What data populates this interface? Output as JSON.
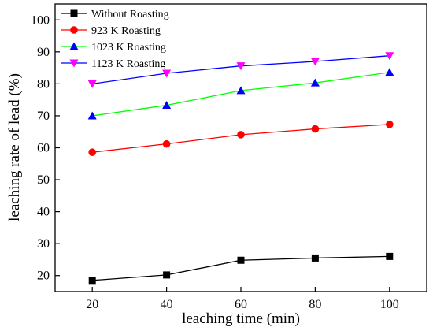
{
  "chart_data": {
    "type": "line",
    "title": "",
    "xlabel": "leaching time (min)",
    "ylabel": "leaching rate of lead (%)",
    "xlim": [
      10,
      110
    ],
    "ylim": [
      15,
      105
    ],
    "xticks": [
      20,
      40,
      60,
      80,
      100
    ],
    "yticks": [
      20,
      30,
      40,
      50,
      60,
      70,
      80,
      90,
      100
    ],
    "grid": false,
    "legend_position": "top-left",
    "x": [
      20,
      40,
      60,
      80,
      100
    ],
    "series": [
      {
        "name": "Without  Roasting",
        "values": [
          18.5,
          20.2,
          24.8,
          25.5,
          26.0
        ],
        "color": "#000000",
        "marker": "square"
      },
      {
        "name": "923 K Roasting",
        "values": [
          58.6,
          61.2,
          64.1,
          65.9,
          67.3
        ],
        "color": "#ff0000",
        "marker": "circle"
      },
      {
        "name": "1023 K  Roasting",
        "values": [
          70.0,
          73.3,
          77.9,
          80.3,
          83.6
        ],
        "color": "#00ff00",
        "line_color": "#00ff00",
        "marker_color": "#0000ff",
        "marker": "triangle-up"
      },
      {
        "name": "1123 K  Roasting",
        "values": [
          80.0,
          83.3,
          85.6,
          87.0,
          88.8
        ],
        "color": "#0000ff",
        "marker_color": "#ff00ff",
        "marker": "triangle-down"
      }
    ]
  }
}
